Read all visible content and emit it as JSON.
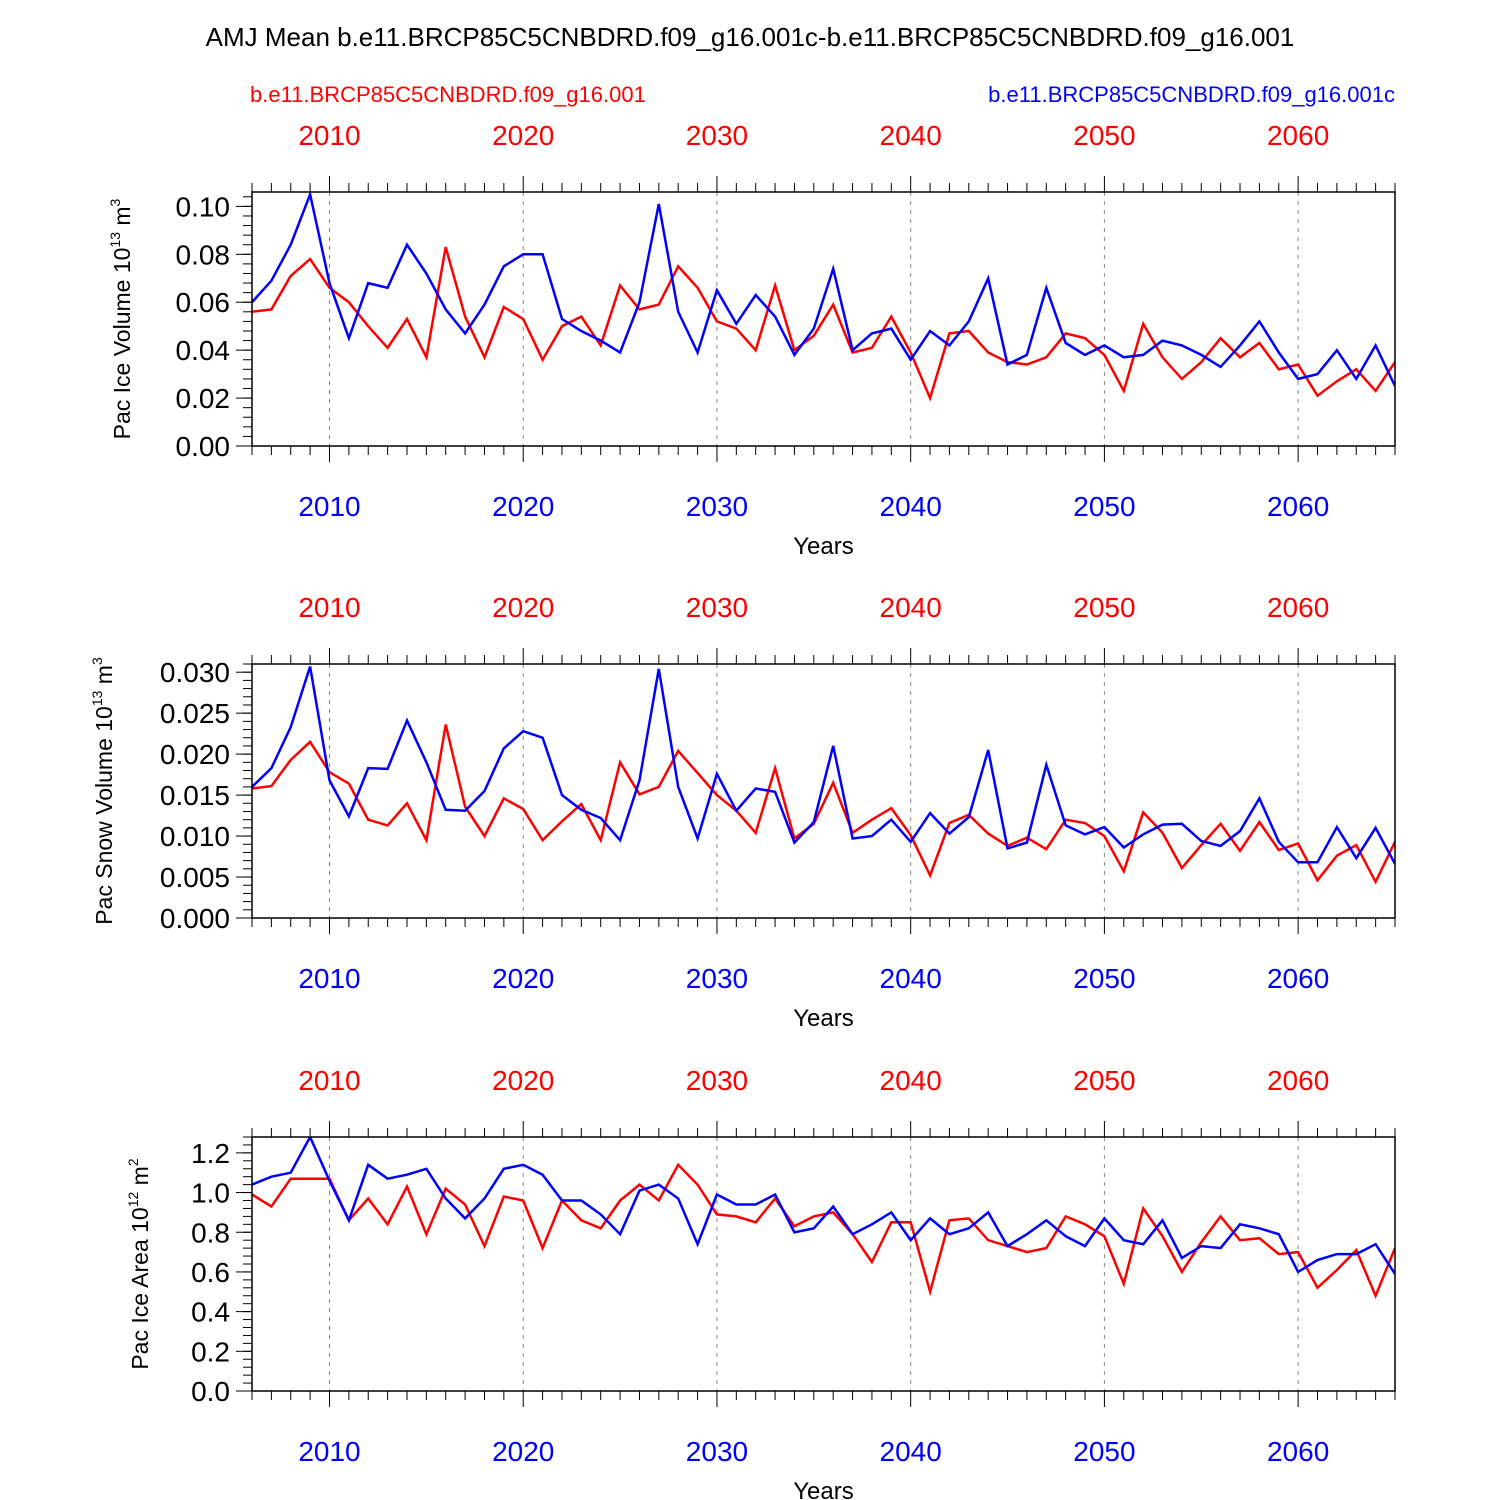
{
  "title": "AMJ Mean b.e11.BRCP85C5CNBDRD.f09_g16.001c-b.e11.BRCP85C5CNBDRD.f09_g16.001",
  "legend": {
    "left": "b.e11.BRCP85C5CNBDRD.f09_g16.001",
    "right": "b.e11.BRCP85C5CNBDRD.f09_g16.001c"
  },
  "colors": {
    "case1": "#ff0000",
    "case2": "#0000ff",
    "grid": "#888888",
    "axis": "#000000"
  },
  "chart_data": [
    {
      "type": "line",
      "ylabel_main": "Pac Ice Volume 10",
      "ylabel_exp": "13",
      "ylabel_unit": " m",
      "ylabel_unit_exp": "3",
      "xlabel": "Years",
      "xlim": [
        2006,
        2065
      ],
      "ylim": [
        0,
        0.106
      ],
      "yticks": [
        0.0,
        0.02,
        0.04,
        0.06,
        0.08,
        0.1
      ],
      "ytick_labels": [
        "0.00",
        "0.02",
        "0.04",
        "0.06",
        "0.08",
        "0.10"
      ],
      "xticks": [
        2010,
        2020,
        2030,
        2040,
        2050,
        2060
      ],
      "xtick_labels": [
        "2010",
        "2020",
        "2030",
        "2040",
        "2050",
        "2060"
      ],
      "grid": "vertical dashed",
      "series": [
        {
          "name": "b.e11.BRCP85C5CNBDRD.f09_g16.001",
          "color": "#ff0000",
          "x": [
            2006,
            2007,
            2008,
            2009,
            2010,
            2011,
            2012,
            2013,
            2014,
            2015,
            2016,
            2017,
            2018,
            2019,
            2020,
            2021,
            2022,
            2023,
            2024,
            2025,
            2026,
            2027,
            2028,
            2029,
            2030,
            2031,
            2032,
            2033,
            2034,
            2035,
            2036,
            2037,
            2038,
            2039,
            2040,
            2041,
            2042,
            2043,
            2044,
            2045,
            2046,
            2047,
            2048,
            2049,
            2050,
            2051,
            2052,
            2053,
            2054,
            2055,
            2056,
            2057,
            2058,
            2059,
            2060,
            2061,
            2062,
            2063,
            2064,
            2065
          ],
          "values": [
            0.056,
            0.057,
            0.071,
            0.078,
            0.066,
            0.06,
            0.05,
            0.041,
            0.053,
            0.037,
            0.083,
            0.054,
            0.037,
            0.058,
            0.053,
            0.036,
            0.05,
            0.054,
            0.042,
            0.067,
            0.057,
            0.059,
            0.075,
            0.066,
            0.052,
            0.049,
            0.04,
            0.067,
            0.04,
            0.046,
            0.059,
            0.039,
            0.041,
            0.054,
            0.039,
            0.02,
            0.047,
            0.048,
            0.039,
            0.035,
            0.034,
            0.037,
            0.047,
            0.045,
            0.038,
            0.023,
            0.051,
            0.037,
            0.028,
            0.035,
            0.045,
            0.037,
            0.043,
            0.032,
            0.034,
            0.021,
            0.027,
            0.032,
            0.023,
            0.035
          ]
        },
        {
          "name": "b.e11.BRCP85C5CNBDRD.f09_g16.001c",
          "color": "#0000ff",
          "x": [
            2006,
            2007,
            2008,
            2009,
            2010,
            2011,
            2012,
            2013,
            2014,
            2015,
            2016,
            2017,
            2018,
            2019,
            2020,
            2021,
            2022,
            2023,
            2024,
            2025,
            2026,
            2027,
            2028,
            2029,
            2030,
            2031,
            2032,
            2033,
            2034,
            2035,
            2036,
            2037,
            2038,
            2039,
            2040,
            2041,
            2042,
            2043,
            2044,
            2045,
            2046,
            2047,
            2048,
            2049,
            2050,
            2051,
            2052,
            2053,
            2054,
            2055,
            2056,
            2057,
            2058,
            2059,
            2060,
            2061,
            2062,
            2063,
            2064,
            2065
          ],
          "values": [
            0.06,
            0.069,
            0.084,
            0.105,
            0.068,
            0.045,
            0.068,
            0.066,
            0.084,
            0.072,
            0.057,
            0.047,
            0.059,
            0.075,
            0.08,
            0.08,
            0.053,
            0.048,
            0.044,
            0.039,
            0.06,
            0.101,
            0.056,
            0.039,
            0.065,
            0.051,
            0.063,
            0.054,
            0.038,
            0.049,
            0.074,
            0.04,
            0.047,
            0.049,
            0.036,
            0.048,
            0.042,
            0.052,
            0.07,
            0.034,
            0.038,
            0.066,
            0.043,
            0.038,
            0.042,
            0.037,
            0.038,
            0.044,
            0.042,
            0.038,
            0.033,
            0.042,
            0.052,
            0.039,
            0.028,
            0.03,
            0.04,
            0.028,
            0.042,
            0.025
          ]
        }
      ]
    },
    {
      "type": "line",
      "ylabel_main": "Pac Snow Volume 10",
      "ylabel_exp": "13",
      "ylabel_unit": " m",
      "ylabel_unit_exp": "3",
      "xlabel": "Years",
      "xlim": [
        2006,
        2065
      ],
      "ylim": [
        0,
        0.031
      ],
      "yticks": [
        0.0,
        0.005,
        0.01,
        0.015,
        0.02,
        0.025,
        0.03
      ],
      "ytick_labels": [
        "0.000",
        "0.005",
        "0.010",
        "0.015",
        "0.020",
        "0.025",
        "0.030"
      ],
      "xticks": [
        2010,
        2020,
        2030,
        2040,
        2050,
        2060
      ],
      "xtick_labels": [
        "2010",
        "2020",
        "2030",
        "2040",
        "2050",
        "2060"
      ],
      "grid": "vertical dashed",
      "series": [
        {
          "name": "b.e11.BRCP85C5CNBDRD.f09_g16.001",
          "color": "#ff0000",
          "x": [
            2006,
            2007,
            2008,
            2009,
            2010,
            2011,
            2012,
            2013,
            2014,
            2015,
            2016,
            2017,
            2018,
            2019,
            2020,
            2021,
            2022,
            2023,
            2024,
            2025,
            2026,
            2027,
            2028,
            2029,
            2030,
            2031,
            2032,
            2033,
            2034,
            2035,
            2036,
            2037,
            2038,
            2039,
            2040,
            2041,
            2042,
            2043,
            2044,
            2045,
            2046,
            2047,
            2048,
            2049,
            2050,
            2051,
            2052,
            2053,
            2054,
            2055,
            2056,
            2057,
            2058,
            2059,
            2060,
            2061,
            2062,
            2063,
            2064,
            2065
          ],
          "values": [
            0.0158,
            0.0161,
            0.0193,
            0.0215,
            0.0178,
            0.0164,
            0.012,
            0.0113,
            0.014,
            0.0095,
            0.0236,
            0.0136,
            0.01,
            0.0146,
            0.0133,
            0.0095,
            0.0118,
            0.0139,
            0.0095,
            0.019,
            0.0151,
            0.016,
            0.0204,
            0.0177,
            0.015,
            0.0131,
            0.0104,
            0.0183,
            0.0097,
            0.0115,
            0.0165,
            0.0104,
            0.012,
            0.0134,
            0.0101,
            0.0052,
            0.0116,
            0.0126,
            0.0103,
            0.0088,
            0.0098,
            0.0084,
            0.012,
            0.0116,
            0.01,
            0.0057,
            0.0129,
            0.0104,
            0.0061,
            0.0089,
            0.0115,
            0.0082,
            0.0117,
            0.0083,
            0.0091,
            0.0046,
            0.0076,
            0.0089,
            0.0044,
            0.0093
          ]
        },
        {
          "name": "b.e11.BRCP85C5CNBDRD.f09_g16.001c",
          "color": "#0000ff",
          "x": [
            2006,
            2007,
            2008,
            2009,
            2010,
            2011,
            2012,
            2013,
            2014,
            2015,
            2016,
            2017,
            2018,
            2019,
            2020,
            2021,
            2022,
            2023,
            2024,
            2025,
            2026,
            2027,
            2028,
            2029,
            2030,
            2031,
            2032,
            2033,
            2034,
            2035,
            2036,
            2037,
            2038,
            2039,
            2040,
            2041,
            2042,
            2043,
            2044,
            2045,
            2046,
            2047,
            2048,
            2049,
            2050,
            2051,
            2052,
            2053,
            2054,
            2055,
            2056,
            2057,
            2058,
            2059,
            2060,
            2061,
            2062,
            2063,
            2064,
            2065
          ],
          "values": [
            0.016,
            0.0183,
            0.0233,
            0.0307,
            0.0168,
            0.0124,
            0.0183,
            0.0182,
            0.0241,
            0.019,
            0.0132,
            0.0131,
            0.0155,
            0.0207,
            0.0228,
            0.022,
            0.015,
            0.0132,
            0.0122,
            0.0095,
            0.0168,
            0.0304,
            0.016,
            0.0097,
            0.0176,
            0.0131,
            0.0158,
            0.0154,
            0.0092,
            0.0117,
            0.021,
            0.0097,
            0.01,
            0.012,
            0.0093,
            0.0128,
            0.0103,
            0.0123,
            0.0205,
            0.0085,
            0.0092,
            0.0187,
            0.0113,
            0.0102,
            0.0111,
            0.0086,
            0.0102,
            0.0114,
            0.0115,
            0.0094,
            0.0088,
            0.0106,
            0.0146,
            0.0093,
            0.0068,
            0.0068,
            0.0111,
            0.0073,
            0.011,
            0.0066
          ]
        }
      ]
    },
    {
      "type": "line",
      "ylabel_main": "Pac Ice Area 10",
      "ylabel_exp": "12",
      "ylabel_unit": " m",
      "ylabel_unit_exp": "2",
      "xlabel": "Years",
      "xlim": [
        2006,
        2065
      ],
      "ylim": [
        0,
        1.28
      ],
      "yticks": [
        0.0,
        0.2,
        0.4,
        0.6,
        0.8,
        1.0,
        1.2
      ],
      "ytick_labels": [
        "0.0",
        "0.2",
        "0.4",
        "0.6",
        "0.8",
        "1.0",
        "1.2"
      ],
      "xticks": [
        2010,
        2020,
        2030,
        2040,
        2050,
        2060
      ],
      "xtick_labels": [
        "2010",
        "2020",
        "2030",
        "2040",
        "2050",
        "2060"
      ],
      "grid": "vertical dashed",
      "series": [
        {
          "name": "b.e11.BRCP85C5CNBDRD.f09_g16.001",
          "color": "#ff0000",
          "x": [
            2006,
            2007,
            2008,
            2009,
            2010,
            2011,
            2012,
            2013,
            2014,
            2015,
            2016,
            2017,
            2018,
            2019,
            2020,
            2021,
            2022,
            2023,
            2024,
            2025,
            2026,
            2027,
            2028,
            2029,
            2030,
            2031,
            2032,
            2033,
            2034,
            2035,
            2036,
            2037,
            2038,
            2039,
            2040,
            2041,
            2042,
            2043,
            2044,
            2045,
            2046,
            2047,
            2048,
            2049,
            2050,
            2051,
            2052,
            2053,
            2054,
            2055,
            2056,
            2057,
            2058,
            2059,
            2060,
            2061,
            2062,
            2063,
            2064,
            2065
          ],
          "values": [
            0.99,
            0.93,
            1.07,
            1.07,
            1.07,
            0.86,
            0.97,
            0.84,
            1.03,
            0.79,
            1.02,
            0.94,
            0.73,
            0.98,
            0.96,
            0.72,
            0.96,
            0.86,
            0.82,
            0.96,
            1.04,
            0.96,
            1.14,
            1.04,
            0.89,
            0.88,
            0.85,
            0.97,
            0.83,
            0.88,
            0.9,
            0.79,
            0.65,
            0.85,
            0.85,
            0.5,
            0.86,
            0.87,
            0.76,
            0.73,
            0.7,
            0.72,
            0.88,
            0.84,
            0.78,
            0.54,
            0.92,
            0.78,
            0.6,
            0.75,
            0.88,
            0.76,
            0.77,
            0.69,
            0.7,
            0.52,
            0.61,
            0.71,
            0.48,
            0.72
          ]
        },
        {
          "name": "b.e11.BRCP85C5CNBDRD.f09_g16.001c",
          "color": "#0000ff",
          "x": [
            2006,
            2007,
            2008,
            2009,
            2010,
            2011,
            2012,
            2013,
            2014,
            2015,
            2016,
            2017,
            2018,
            2019,
            2020,
            2021,
            2022,
            2023,
            2024,
            2025,
            2026,
            2027,
            2028,
            2029,
            2030,
            2031,
            2032,
            2033,
            2034,
            2035,
            2036,
            2037,
            2038,
            2039,
            2040,
            2041,
            2042,
            2043,
            2044,
            2045,
            2046,
            2047,
            2048,
            2049,
            2050,
            2051,
            2052,
            2053,
            2054,
            2055,
            2056,
            2057,
            2058,
            2059,
            2060,
            2061,
            2062,
            2063,
            2064,
            2065
          ],
          "values": [
            1.04,
            1.08,
            1.1,
            1.28,
            1.06,
            0.86,
            1.14,
            1.07,
            1.09,
            1.12,
            0.97,
            0.87,
            0.97,
            1.12,
            1.14,
            1.09,
            0.96,
            0.96,
            0.89,
            0.79,
            1.01,
            1.04,
            0.97,
            0.74,
            0.99,
            0.94,
            0.94,
            0.99,
            0.8,
            0.82,
            0.93,
            0.79,
            0.84,
            0.9,
            0.76,
            0.87,
            0.79,
            0.82,
            0.9,
            0.73,
            0.79,
            0.86,
            0.78,
            0.73,
            0.87,
            0.76,
            0.74,
            0.86,
            0.67,
            0.73,
            0.72,
            0.84,
            0.82,
            0.79,
            0.6,
            0.66,
            0.69,
            0.69,
            0.74,
            0.59
          ]
        }
      ]
    }
  ]
}
